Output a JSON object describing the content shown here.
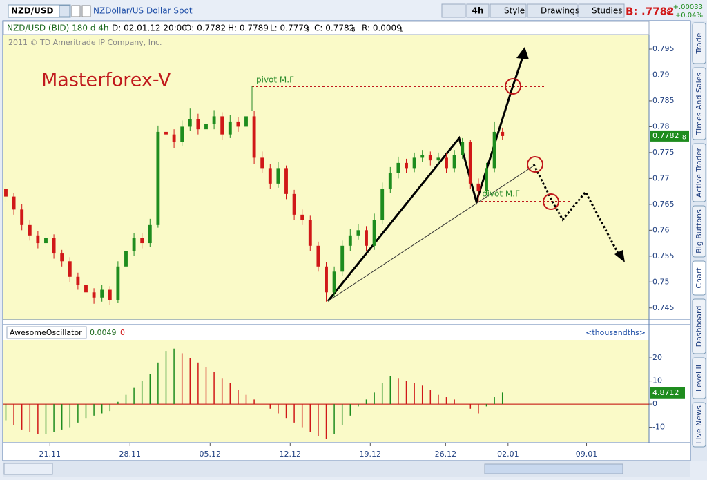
{
  "toolbar": {
    "symbol": "NZD/USD",
    "description": "NZDollar/US Dollar Spot",
    "period": "4h",
    "style": "Style",
    "drawings": "Drawings",
    "studies": "Studies",
    "bid_label": "B:",
    "bid": ".7782",
    "bid_sub": "8",
    "change": "+.00033",
    "change_pct": "+0.04%"
  },
  "info_bar": {
    "title": "NZD/USD (BID) 180 d 4h",
    "date": "D: 02.01.12 20:00",
    "open": "O: 0.7782",
    "high": "H: 0.7789",
    "low": "L: 0.7779",
    "low_sub": "9",
    "close": "C: 0.7782",
    "close_sub": "8",
    "range": "R: 0.0009",
    "range_sub": "1"
  },
  "side_tabs": [
    "Trade",
    "Times And Sales",
    "Active Trader",
    "Big Buttons",
    "Chart",
    "Dashboard",
    "Level II",
    "Live News"
  ],
  "chart_data": [
    {
      "type": "candlestick",
      "copyright": "2011 © TD Ameritrade IP Company, Inc.",
      "watermark": "Masterforex-V",
      "annotations": [
        "pivot M.F",
        "pivot M.F"
      ],
      "last_price": 0.7782,
      "last_price_sub": "8",
      "up_color": "#1e8c1e",
      "down_color": "#d01818",
      "x": [
        -2.75,
        -2.25,
        -1.75,
        -1.25,
        -0.75,
        -0.25,
        0.25,
        0.75,
        1.25,
        1.75,
        2.25,
        2.75,
        3.25,
        3.75,
        4.25,
        4.75,
        5.25,
        5.75,
        6.25,
        6.75,
        7.25,
        7.75,
        8.25,
        8.75,
        9.25,
        9.75,
        10.25,
        10.75,
        11.25,
        11.75,
        12.25,
        12.75,
        13.25,
        13.75,
        14.25,
        14.75,
        15.25,
        15.75,
        16.25,
        16.75,
        17.25,
        17.75,
        18.25,
        18.75,
        19.25,
        19.75,
        20.25,
        20.75,
        21.25,
        21.75,
        22.25,
        22.75,
        23.25,
        23.75,
        24.25,
        24.75,
        25.25,
        25.75,
        26.25,
        26.75,
        27.25,
        27.75,
        28.25
      ],
      "open": [
        0.768,
        0.7665,
        0.764,
        0.761,
        0.759,
        0.7575,
        0.7585,
        0.7555,
        0.754,
        0.751,
        0.7495,
        0.748,
        0.747,
        0.7485,
        0.7465,
        0.753,
        0.756,
        0.7585,
        0.7575,
        0.761,
        0.779,
        0.7785,
        0.777,
        0.78,
        0.7815,
        0.7795,
        0.7805,
        0.782,
        0.7785,
        0.781,
        0.78,
        0.782,
        0.774,
        0.772,
        0.769,
        0.772,
        0.767,
        0.763,
        0.762,
        0.757,
        0.753,
        0.748,
        0.752,
        0.757,
        0.759,
        0.76,
        0.757,
        0.762,
        0.768,
        0.771,
        0.773,
        0.772,
        0.774,
        0.7745,
        0.7735,
        0.774,
        0.772,
        0.7745,
        0.777,
        0.769,
        0.7675,
        0.772,
        0.779
      ],
      "high": [
        0.7692,
        0.7672,
        0.765,
        0.762,
        0.7598,
        0.7595,
        0.7592,
        0.7562,
        0.7548,
        0.7518,
        0.7502,
        0.7488,
        0.7495,
        0.7492,
        0.754,
        0.757,
        0.7595,
        0.7595,
        0.7622,
        0.7802,
        0.7805,
        0.7795,
        0.7812,
        0.7835,
        0.7825,
        0.7818,
        0.7832,
        0.7828,
        0.7822,
        0.7818,
        0.7878,
        0.783,
        0.7752,
        0.7728,
        0.7732,
        0.7725,
        0.7678,
        0.764,
        0.7628,
        0.7578,
        0.7538,
        0.753,
        0.758,
        0.7602,
        0.7612,
        0.7608,
        0.7632,
        0.7692,
        0.7722,
        0.7742,
        0.7738,
        0.775,
        0.7755,
        0.7752,
        0.775,
        0.7748,
        0.7755,
        0.7778,
        0.7775,
        0.77,
        0.773,
        0.781,
        0.7798
      ],
      "low": [
        0.7655,
        0.763,
        0.76,
        0.758,
        0.7565,
        0.7568,
        0.7545,
        0.753,
        0.75,
        0.7485,
        0.747,
        0.7458,
        0.7462,
        0.7455,
        0.746,
        0.7522,
        0.755,
        0.7565,
        0.7568,
        0.7605,
        0.7772,
        0.7758,
        0.7762,
        0.7792,
        0.7785,
        0.7785,
        0.7795,
        0.7775,
        0.7778,
        0.779,
        0.7795,
        0.7728,
        0.771,
        0.768,
        0.7682,
        0.766,
        0.762,
        0.761,
        0.756,
        0.752,
        0.7462,
        0.7472,
        0.7512,
        0.756,
        0.7582,
        0.756,
        0.7562,
        0.7612,
        0.7672,
        0.77,
        0.771,
        0.7712,
        0.7732,
        0.7725,
        0.7728,
        0.771,
        0.7712,
        0.7738,
        0.768,
        0.7655,
        0.7668,
        0.7712,
        0.7775
      ],
      "close": [
        0.7665,
        0.764,
        0.761,
        0.759,
        0.7575,
        0.7585,
        0.7555,
        0.754,
        0.751,
        0.7495,
        0.748,
        0.747,
        0.7485,
        0.7465,
        0.753,
        0.756,
        0.7585,
        0.7575,
        0.761,
        0.779,
        0.7785,
        0.777,
        0.78,
        0.7815,
        0.7795,
        0.7805,
        0.782,
        0.7785,
        0.781,
        0.78,
        0.782,
        0.774,
        0.772,
        0.769,
        0.772,
        0.767,
        0.763,
        0.762,
        0.757,
        0.753,
        0.748,
        0.752,
        0.757,
        0.759,
        0.76,
        0.757,
        0.762,
        0.768,
        0.771,
        0.773,
        0.772,
        0.774,
        0.7745,
        0.7735,
        0.774,
        0.772,
        0.7745,
        0.777,
        0.769,
        0.7675,
        0.772,
        0.779,
        0.7782
      ],
      "xlim": [
        -2.9,
        37.4
      ],
      "xticks": [
        {
          "value": 0,
          "label": "21.11"
        },
        {
          "value": 5,
          "label": "28.11"
        },
        {
          "value": 10,
          "label": "05.12"
        },
        {
          "value": 15,
          "label": "12.12"
        },
        {
          "value": 20,
          "label": "19.12"
        },
        {
          "value": 24.7,
          "label": "26.12"
        },
        {
          "value": 28.6,
          "label": "02.01"
        },
        {
          "value": 33.5,
          "label": "09.01"
        }
      ],
      "ylim": [
        0.7427,
        0.7978
      ],
      "yticks": [
        0.745,
        0.75,
        0.755,
        0.76,
        0.765,
        0.77,
        0.775,
        0.78,
        0.785,
        0.79,
        0.795
      ]
    },
    {
      "type": "oscillator",
      "name": "AwesomeOscillator",
      "value_text": "0.0049",
      "value_text2": "0",
      "unit_label": "<thousandths>",
      "last_value": 4.8712,
      "up_color": "#1e8c1e",
      "down_color": "#d01818",
      "zero_color": "#c00000",
      "x": [
        -2.75,
        -2.25,
        -1.75,
        -1.25,
        -0.75,
        -0.25,
        0.25,
        0.75,
        1.25,
        1.75,
        2.25,
        2.75,
        3.25,
        3.75,
        4.25,
        4.75,
        5.25,
        5.75,
        6.25,
        6.75,
        7.25,
        7.75,
        8.25,
        8.75,
        9.25,
        9.75,
        10.25,
        10.75,
        11.25,
        11.75,
        12.25,
        12.75,
        13.25,
        13.75,
        14.25,
        14.75,
        15.25,
        15.75,
        16.25,
        16.75,
        17.25,
        17.75,
        18.25,
        18.75,
        19.25,
        19.75,
        20.25,
        20.75,
        21.25,
        21.75,
        22.25,
        22.75,
        23.25,
        23.75,
        24.25,
        24.75,
        25.25,
        25.75,
        26.25,
        26.75,
        27.25,
        27.75,
        28.25
      ],
      "values": [
        -7,
        -9,
        -11,
        -12,
        -13,
        -13,
        -12,
        -11,
        -10,
        -8,
        -6,
        -5,
        -4,
        -3,
        1,
        4,
        7,
        10,
        13,
        18,
        23,
        24,
        22,
        20,
        18,
        16,
        14,
        11,
        9,
        6,
        4,
        2,
        0,
        -2,
        -4,
        -6,
        -8,
        -10,
        -12,
        -14,
        -15,
        -13,
        -9,
        -5,
        -1,
        2,
        5,
        9,
        12,
        11,
        10,
        9,
        8,
        6,
        4,
        3,
        2,
        0,
        -2,
        -4,
        -1,
        3,
        5
      ],
      "xlim": [
        -2.9,
        37.4
      ],
      "ylim": [
        -16.4,
        27.8
      ],
      "yticks": [
        -10,
        0,
        10,
        20
      ]
    }
  ]
}
